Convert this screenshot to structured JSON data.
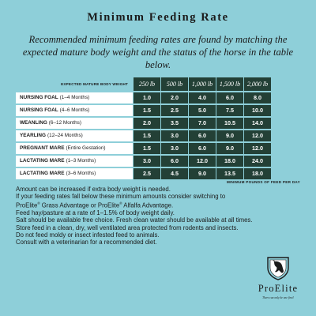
{
  "title": "Minimum Feeding Rate",
  "subtitle": "Recommended minimum feeding rates are found by matching the expected mature body weight and the status of the horse in the table below.",
  "table": {
    "header_label": "Expected mature body weight",
    "weights": [
      "250 lb",
      "500 lb",
      "1,000 lb",
      "1,500 lb",
      "2,000 lb"
    ],
    "rows": [
      {
        "name": "NURSING FOAL",
        "detail": "(1–4 Months)",
        "values": [
          "1.0",
          "2.0",
          "4.0",
          "6.0",
          "8.0"
        ]
      },
      {
        "name": "NURSING FOAL",
        "detail": "(4–6 Months)",
        "values": [
          "1.5",
          "2.5",
          "5.0",
          "7.5",
          "10.0"
        ]
      },
      {
        "name": "WEANLING",
        "detail": "(6–12 Months)",
        "values": [
          "2.0",
          "3.5",
          "7.0",
          "10.5",
          "14.0"
        ]
      },
      {
        "name": "YEARLING",
        "detail": "(12–24 Months)",
        "values": [
          "1.5",
          "3.0",
          "6.0",
          "9.0",
          "12.0"
        ]
      },
      {
        "name": "PREGNANT MARE",
        "detail": "(Entire Gestation)",
        "values": [
          "1.5",
          "3.0",
          "6.0",
          "9.0",
          "12.0"
        ]
      },
      {
        "name": "LACTATING MARE",
        "detail": "(1–3 Months)",
        "values": [
          "3.0",
          "6.0",
          "12.0",
          "18.0",
          "24.0"
        ]
      },
      {
        "name": "LACTATING MARE",
        "detail": "(3–6 Months)",
        "values": [
          "2.5",
          "4.5",
          "9.0",
          "13.5",
          "18.0"
        ]
      }
    ],
    "footnote": "Minimum pounds of feed per day"
  },
  "notes": {
    "line1": "Amount can be increased if extra body weight is needed.",
    "line2": "If your feeding rates fall below these minimum amounts consider switching to",
    "line3_a": "ProElite",
    "line3_b": " Grass Advantage or ProElite",
    "line3_c": " Alfalfa Advantage.",
    "registered": "®",
    "line4": "Feed hay/pasture at a rate of 1–1.5% of body weight daily.",
    "line5": "Salt should be available free choice. Fresh clean water should be available at all times.",
    "line6": "Store feed in a clean, dry, well ventilated area protected from rodents and insects.",
    "line7": "Do not feed moldy or insect infested feed to animals.",
    "line8": "Consult with a veterinarian for a recommended diet."
  },
  "logo": {
    "brand": "ProElite",
    "tagline": "There can only be one first!",
    "icon": "horse-head-shield-icon"
  }
}
